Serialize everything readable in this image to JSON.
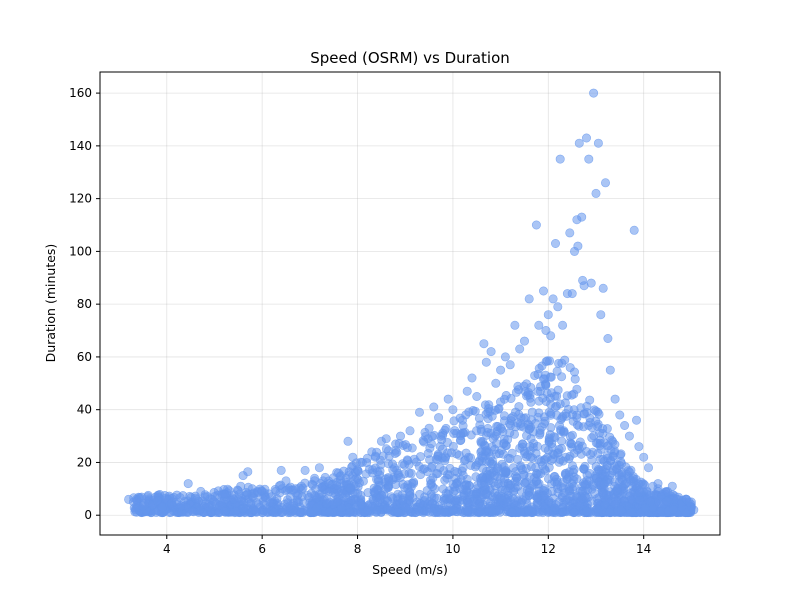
{
  "chart_data": {
    "type": "scatter",
    "title": "Speed (OSRM) vs Duration",
    "xlabel": "Speed (m/s)",
    "ylabel": "Duration (minutes)",
    "xlim": [
      2.6,
      15.6
    ],
    "ylim": [
      -7.5,
      168
    ],
    "xticks": [
      4,
      6,
      8,
      10,
      12,
      14
    ],
    "yticks": [
      0,
      20,
      40,
      60,
      80,
      100,
      120,
      140,
      160
    ],
    "grid": true,
    "legend": "none",
    "color": "#6495ED",
    "point_alpha": 0.55,
    "points": [
      [
        3.2,
        6
      ],
      [
        3.3,
        5
      ],
      [
        3.5,
        3.5
      ],
      [
        3.6,
        7
      ],
      [
        3.7,
        4
      ],
      [
        3.8,
        5.5
      ],
      [
        3.9,
        3
      ],
      [
        4.0,
        6
      ],
      [
        4.1,
        4.5
      ],
      [
        4.2,
        5
      ],
      [
        4.3,
        3.5
      ],
      [
        4.45,
        12
      ],
      [
        4.6,
        6.5
      ],
      [
        4.8,
        7
      ],
      [
        5.0,
        5
      ],
      [
        5.2,
        8
      ],
      [
        5.4,
        6
      ],
      [
        5.55,
        11
      ],
      [
        5.6,
        15
      ],
      [
        5.7,
        16.5
      ],
      [
        5.9,
        9
      ],
      [
        6.2,
        7
      ],
      [
        6.4,
        17
      ],
      [
        6.5,
        13
      ],
      [
        6.7,
        10
      ],
      [
        6.9,
        17
      ],
      [
        7.1,
        14
      ],
      [
        7.2,
        18
      ],
      [
        7.4,
        12
      ],
      [
        7.6,
        16
      ],
      [
        7.8,
        28
      ],
      [
        7.9,
        22
      ],
      [
        8.1,
        20
      ],
      [
        8.3,
        24
      ],
      [
        8.5,
        28
      ],
      [
        8.6,
        29
      ],
      [
        8.8,
        27
      ],
      [
        8.9,
        30
      ],
      [
        9.1,
        32
      ],
      [
        9.3,
        39
      ],
      [
        9.5,
        33
      ],
      [
        9.6,
        41
      ],
      [
        9.7,
        37
      ],
      [
        9.9,
        44
      ],
      [
        10.0,
        40
      ],
      [
        10.2,
        36
      ],
      [
        10.3,
        47
      ],
      [
        10.4,
        52
      ],
      [
        10.5,
        45
      ],
      [
        10.65,
        65
      ],
      [
        10.7,
        58
      ],
      [
        10.8,
        62
      ],
      [
        10.9,
        50
      ],
      [
        11.0,
        55
      ],
      [
        11.1,
        60
      ],
      [
        11.2,
        57
      ],
      [
        11.3,
        72
      ],
      [
        11.4,
        63
      ],
      [
        11.5,
        66
      ],
      [
        11.6,
        82
      ],
      [
        11.75,
        110
      ],
      [
        11.8,
        72
      ],
      [
        11.9,
        85
      ],
      [
        11.95,
        70
      ],
      [
        12.0,
        76
      ],
      [
        12.05,
        68
      ],
      [
        12.1,
        82
      ],
      [
        12.15,
        103
      ],
      [
        12.2,
        79
      ],
      [
        12.25,
        135
      ],
      [
        12.3,
        72
      ],
      [
        12.4,
        84
      ],
      [
        12.45,
        107
      ],
      [
        12.5,
        84
      ],
      [
        12.55,
        100
      ],
      [
        12.6,
        112
      ],
      [
        12.62,
        102
      ],
      [
        12.65,
        141
      ],
      [
        12.7,
        113
      ],
      [
        12.72,
        89
      ],
      [
        12.75,
        87
      ],
      [
        12.8,
        143
      ],
      [
        12.85,
        135
      ],
      [
        12.9,
        88
      ],
      [
        12.95,
        160
      ],
      [
        13.0,
        122
      ],
      [
        13.05,
        141
      ],
      [
        13.1,
        76
      ],
      [
        13.15,
        86
      ],
      [
        13.2,
        126
      ],
      [
        13.25,
        67
      ],
      [
        13.3,
        55
      ],
      [
        13.4,
        44
      ],
      [
        13.5,
        38
      ],
      [
        13.6,
        34
      ],
      [
        13.7,
        30
      ],
      [
        13.8,
        108
      ],
      [
        13.85,
        36
      ],
      [
        13.9,
        26
      ],
      [
        14.0,
        22
      ],
      [
        14.1,
        18
      ],
      [
        14.3,
        12
      ],
      [
        14.5,
        9
      ],
      [
        14.6,
        11
      ],
      [
        14.7,
        6
      ],
      [
        14.8,
        5
      ],
      [
        14.9,
        6
      ],
      [
        15.0,
        3
      ],
      [
        15.05,
        2
      ],
      [
        14.95,
        5
      ]
    ]
  }
}
